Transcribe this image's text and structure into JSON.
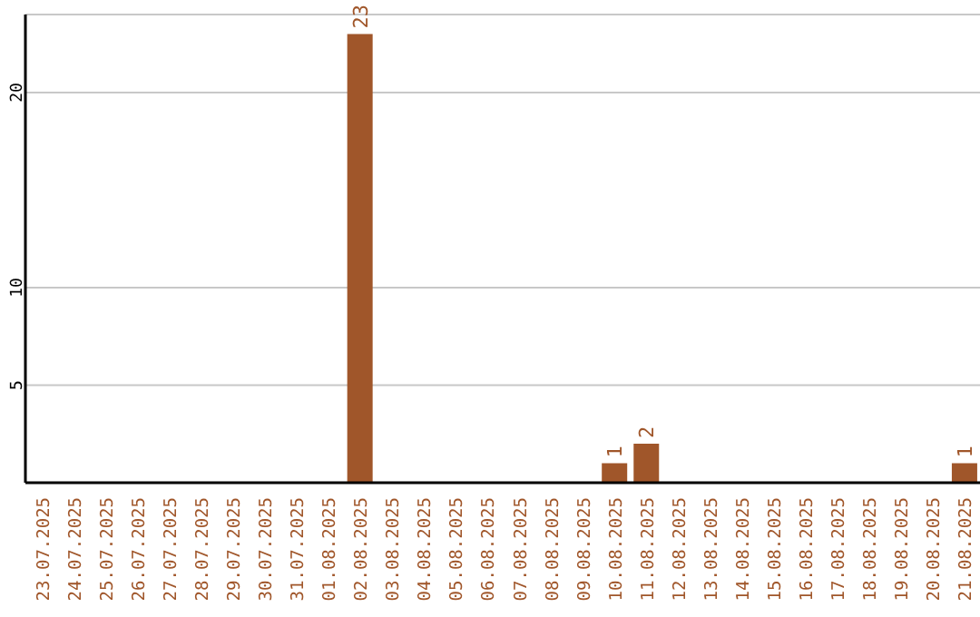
{
  "chart_data": {
    "type": "bar",
    "categories": [
      "23.07.2025",
      "24.07.2025",
      "25.07.2025",
      "26.07.2025",
      "27.07.2025",
      "28.07.2025",
      "29.07.2025",
      "30.07.2025",
      "31.07.2025",
      "01.08.2025",
      "02.08.2025",
      "03.08.2025",
      "04.08.2025",
      "05.08.2025",
      "06.08.2025",
      "07.08.2025",
      "08.08.2025",
      "09.08.2025",
      "10.08.2025",
      "11.08.2025",
      "12.08.2025",
      "13.08.2025",
      "14.08.2025",
      "15.08.2025",
      "16.08.2025",
      "17.08.2025",
      "18.08.2025",
      "19.08.2025",
      "20.08.2025",
      "21.08.2025"
    ],
    "values": [
      0,
      0,
      0,
      0,
      0,
      0,
      0,
      0,
      0,
      0,
      23,
      0,
      0,
      0,
      0,
      0,
      0,
      0,
      1,
      2,
      0,
      0,
      0,
      0,
      0,
      0,
      0,
      0,
      0,
      1
    ],
    "value_labels": [
      null,
      null,
      null,
      null,
      null,
      null,
      null,
      null,
      null,
      null,
      "23",
      null,
      null,
      null,
      null,
      null,
      null,
      null,
      "1",
      "2",
      null,
      null,
      null,
      null,
      null,
      null,
      null,
      null,
      null,
      "1"
    ],
    "color": "#a0562a",
    "ylim": [
      0,
      24
    ],
    "yticks": [
      5,
      10,
      20
    ],
    "grid": "y"
  }
}
